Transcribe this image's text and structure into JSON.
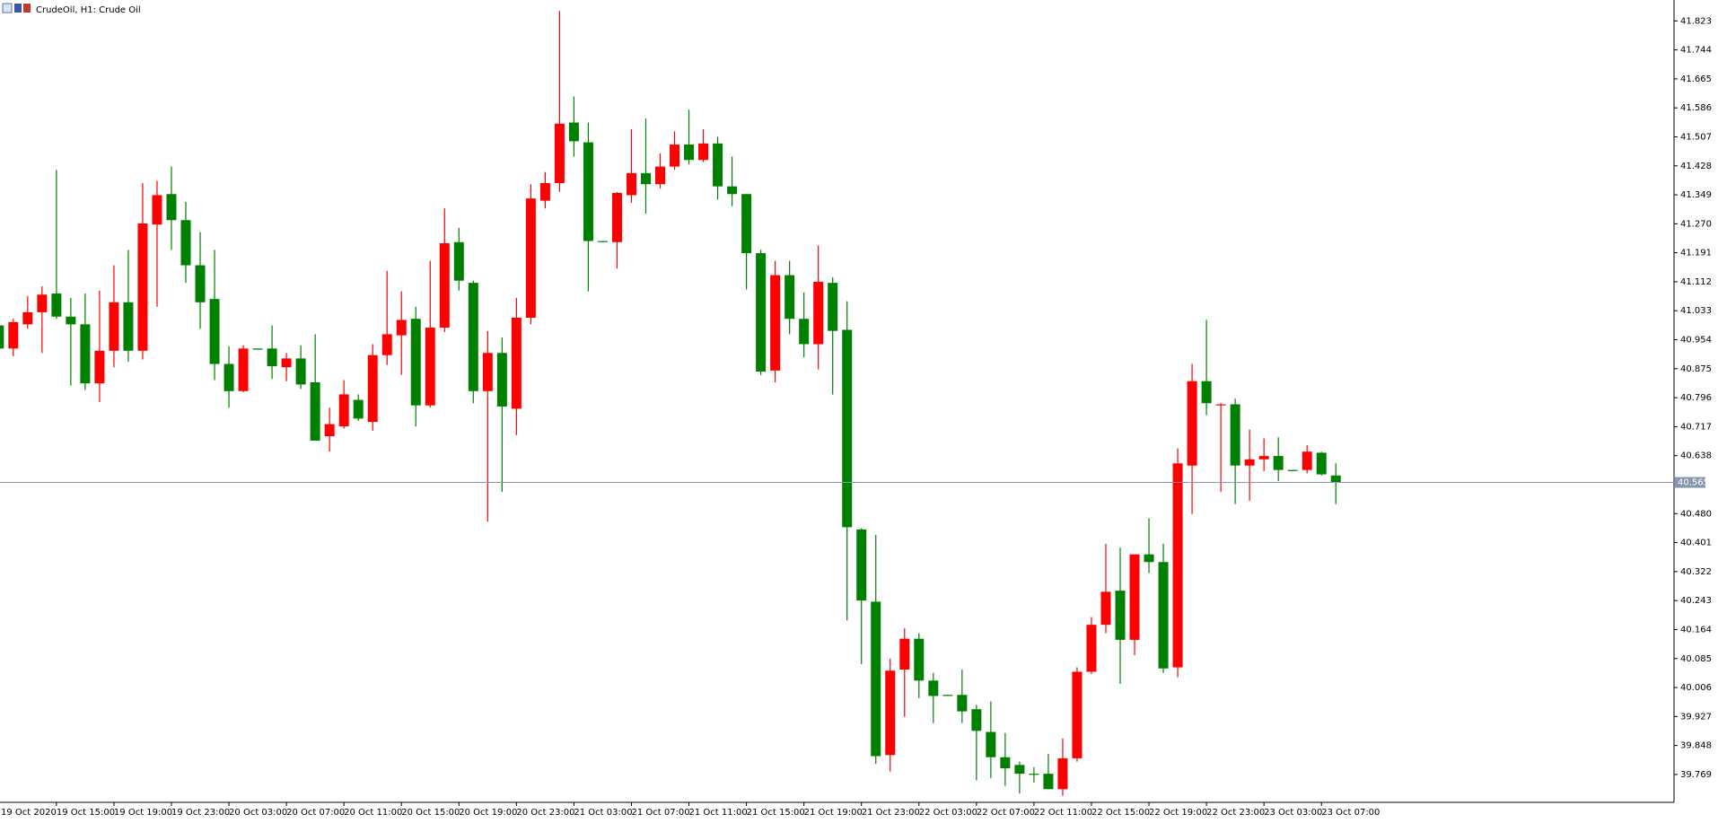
{
  "chart_data": {
    "type": "candlestick",
    "title": "CrudeOil, H1: Crude Oil",
    "categories": [
      "19 Oct 2020",
      null,
      null,
      null,
      "19 Oct 15:00",
      null,
      null,
      null,
      "19 Oct 19:00",
      null,
      null,
      null,
      "19 Oct 23:00",
      null,
      null,
      null,
      "20 Oct 03:00",
      null,
      null,
      null,
      "20 Oct 07:00",
      null,
      null,
      null,
      "20 Oct 11:00",
      null,
      null,
      null,
      "20 Oct 15:00",
      null,
      null,
      null,
      "20 Oct 19:00",
      null,
      null,
      null,
      "20 Oct 23:00",
      null,
      null,
      null,
      "21 Oct 03:00",
      null,
      null,
      null,
      "21 Oct 07:00",
      null,
      null,
      null,
      "21 Oct 11:00",
      null,
      null,
      null,
      "21 Oct 15:00",
      null,
      null,
      null,
      "21 Oct 19:00",
      null,
      null,
      null,
      "21 Oct 23:00",
      null,
      null,
      null,
      "22 Oct 03:00",
      null,
      null,
      null,
      "22 Oct 07:00",
      null,
      null,
      null,
      "22 Oct 11:00",
      null,
      null,
      null,
      "22 Oct 15:00",
      null,
      null,
      null,
      "22 Oct 19:00",
      null,
      null,
      null,
      "22 Oct 23:00",
      null,
      null,
      null,
      "23 Oct 03:00",
      null,
      null,
      null,
      "23 Oct 07:00",
      null
    ],
    "open": [
      40.993,
      40.93,
      40.996,
      41.029,
      41.08,
      41.017,
      40.996,
      40.835,
      40.924,
      41.056,
      40.924,
      41.268,
      41.351,
      41.28,
      41.157,
      41.065,
      40.888,
      40.814,
      40.93,
      40.93,
      40.879,
      40.903,
      40.838,
      40.691,
      40.718,
      40.79,
      40.73,
      40.912,
      40.966,
      41.011,
      40.775,
      40.987,
      41.22,
      41.109,
      40.814,
      40.918,
      40.766,
      41.014,
      41.333,
      41.381,
      41.546,
      41.492,
      41.223,
      41.22,
      41.348,
      41.408,
      41.378,
      41.426,
      41.486,
      41.444,
      41.489,
      41.372,
      41.351,
      41.19,
      40.87,
      41.13,
      41.011,
      40.942,
      41.109,
      40.981,
      40.437,
      40.24,
      39.822,
      40.055,
      40.139,
      40.025,
      39.986,
      39.986,
      39.947,
      39.885,
      39.816,
      39.795,
      39.771,
      39.771,
      39.729,
      39.813,
      40.049,
      40.177,
      40.27,
      40.136,
      40.369,
      40.348,
      40.061,
      40.611,
      40.841,
      40.775,
      40.778,
      40.611,
      40.628,
      40.637,
      40.599,
      40.599,
      40.646,
      40.584
    ],
    "high": [
      40.999,
      41.011,
      41.073,
      41.1,
      41.417,
      41.068,
      41.08,
      41.088,
      41.157,
      41.199,
      41.381,
      41.387,
      41.426,
      41.33,
      41.247,
      41.199,
      40.936,
      40.939,
      40.93,
      40.993,
      40.918,
      40.939,
      40.969,
      40.769,
      40.844,
      40.805,
      40.942,
      41.142,
      41.086,
      41.044,
      41.169,
      41.312,
      41.259,
      41.115,
      40.978,
      40.96,
      41.068,
      41.378,
      41.411,
      41.85,
      41.617,
      41.546,
      41.223,
      41.357,
      41.528,
      41.557,
      41.462,
      41.522,
      41.581,
      41.528,
      41.507,
      41.453,
      41.351,
      41.199,
      41.169,
      41.169,
      41.083,
      41.211,
      41.124,
      41.059,
      40.44,
      40.422,
      40.085,
      40.168,
      40.154,
      40.046,
      39.986,
      40.055,
      39.959,
      39.968,
      39.882,
      39.804,
      39.789,
      39.825,
      39.867,
      40.061,
      40.198,
      40.398,
      40.387,
      40.369,
      40.467,
      40.398,
      40.658,
      40.888,
      41.008,
      40.781,
      40.793,
      40.709,
      40.685,
      40.688,
      40.599,
      40.667,
      40.649,
      40.617
    ],
    "low": [
      40.924,
      40.909,
      40.984,
      40.918,
      41.011,
      40.829,
      40.817,
      40.784,
      40.879,
      40.894,
      40.9,
      41.044,
      41.199,
      41.109,
      40.984,
      40.844,
      40.769,
      40.811,
      40.927,
      40.847,
      40.841,
      40.82,
      40.679,
      40.649,
      40.712,
      40.733,
      40.706,
      40.885,
      40.858,
      40.718,
      40.769,
      40.975,
      41.088,
      40.781,
      40.458,
      40.539,
      40.694,
      40.996,
      41.312,
      41.357,
      41.453,
      41.086,
      41.22,
      41.148,
      41.327,
      41.298,
      41.366,
      41.417,
      41.432,
      41.438,
      41.336,
      41.318,
      41.091,
      40.858,
      40.838,
      40.969,
      40.906,
      40.873,
      40.805,
      40.189,
      40.07,
      39.798,
      39.777,
      39.926,
      39.977,
      39.909,
      39.983,
      39.909,
      39.753,
      39.759,
      39.738,
      39.717,
      39.747,
      39.729,
      39.711,
      39.804,
      40.043,
      40.154,
      40.016,
      40.094,
      40.318,
      40.046,
      40.034,
      40.479,
      40.748,
      40.539,
      40.506,
      40.515,
      40.596,
      40.569,
      40.596,
      40.59,
      40.584,
      40.506
    ],
    "close": [
      40.93,
      41.002,
      41.029,
      41.077,
      41.017,
      40.996,
      40.835,
      40.924,
      41.056,
      40.924,
      41.271,
      41.348,
      41.28,
      41.157,
      41.056,
      40.888,
      40.814,
      40.93,
      40.927,
      40.882,
      40.903,
      40.832,
      40.679,
      40.724,
      40.805,
      40.739,
      40.912,
      40.969,
      41.008,
      40.775,
      40.987,
      41.217,
      41.115,
      40.814,
      40.918,
      40.772,
      41.014,
      41.339,
      41.381,
      41.543,
      41.495,
      41.223,
      41.22,
      41.354,
      41.408,
      41.378,
      41.426,
      41.486,
      41.444,
      41.489,
      41.372,
      41.351,
      41.19,
      40.867,
      41.13,
      41.011,
      40.942,
      41.112,
      40.978,
      40.443,
      40.243,
      39.819,
      40.052,
      40.139,
      40.025,
      39.983,
      39.983,
      39.941,
      39.888,
      39.816,
      39.786,
      39.771,
      39.768,
      39.729,
      39.813,
      40.049,
      40.177,
      40.267,
      40.136,
      40.369,
      40.348,
      40.058,
      40.617,
      40.841,
      40.781,
      40.778,
      40.611,
      40.628,
      40.637,
      40.599,
      40.596,
      40.649,
      40.587,
      40.565
    ],
    "up_color": "#ff0000",
    "down_color": "#008000",
    "ylim": [
      39.693,
      41.88
    ],
    "yticks": [
      41.823,
      41.744,
      41.665,
      41.586,
      41.507,
      41.428,
      41.349,
      {
        "value": 41.27,
        "label": "41.270"
      },
      41.191,
      41.112,
      41.033,
      40.954,
      40.875,
      40.796,
      40.717,
      40.638,
      {
        "value": 40.48,
        "label": "40.480"
      },
      40.401,
      40.322,
      40.243,
      40.164,
      40.085,
      40.006,
      39.927,
      39.848,
      39.769
    ],
    "price_line": 40.565,
    "price_line_color": "#8796b0"
  }
}
